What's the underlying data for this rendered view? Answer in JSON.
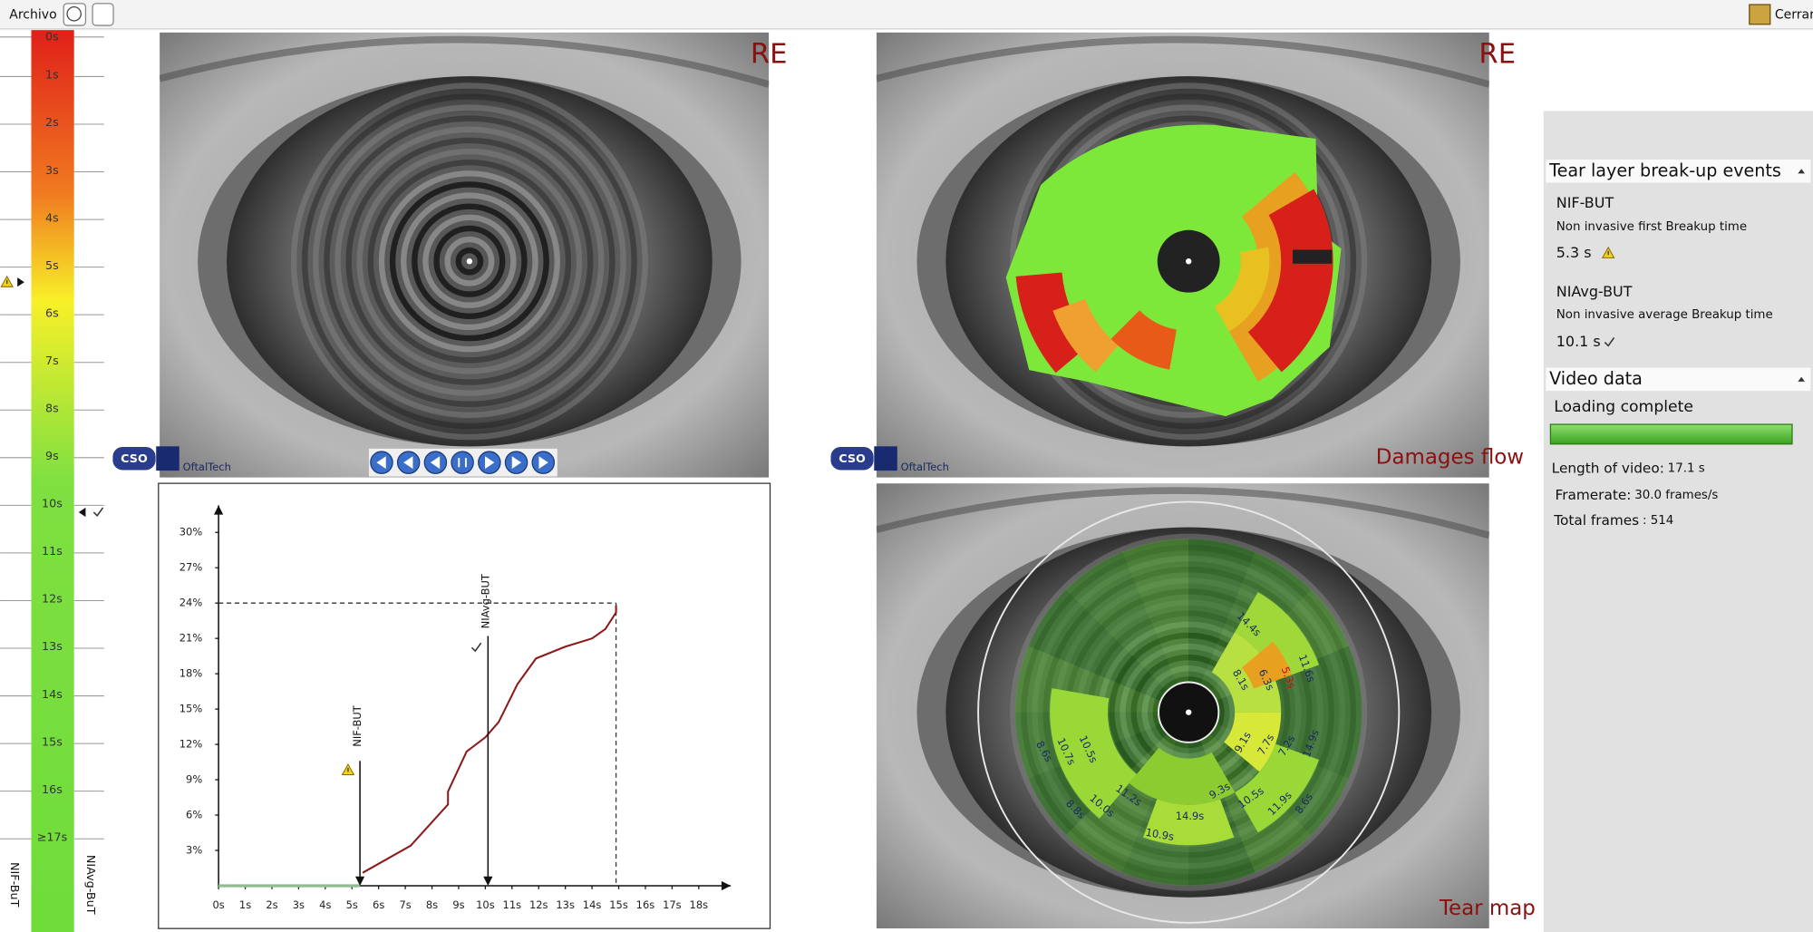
{
  "menu": {
    "file": "Archivo",
    "close": "Cerrar"
  },
  "scale": {
    "labels": [
      "0s",
      "1s",
      "2s",
      "3s",
      "4s",
      "5s",
      "6s",
      "7s",
      "8s",
      "9s",
      "10s",
      "11s",
      "12s",
      "13s",
      "14s",
      "15s",
      "16s",
      "≥17s"
    ],
    "left_label": "NIF-BuT",
    "right_label": "NIAvg-BuT"
  },
  "panels": {
    "topo_label": "RE",
    "damage_label": "RE",
    "damages_flow": "Damages flow",
    "tear_map": "Tear map",
    "brand": "OftalTech",
    "logo": "CSO"
  },
  "tear_map_values": [
    "14.4s",
    "11.6s",
    "8.1s",
    "6.3s",
    "5.3s",
    "9.1s",
    "7.7s",
    "7.2s",
    "14.9s",
    "8.6s",
    "10.7s",
    "10.5s",
    "11.2s",
    "10.0s",
    "8.8s",
    "10.9s",
    "14.9s",
    "9.3s",
    "10.5s",
    "11.9s",
    "8.6s"
  ],
  "chart_data": {
    "type": "line",
    "xlim": [
      0,
      19.2
    ],
    "ylim": [
      0,
      32.3
    ],
    "xticks": [
      {
        "value": 0,
        "label": "0s"
      },
      {
        "value": 1,
        "label": "1s"
      },
      {
        "value": 2,
        "label": "2s"
      },
      {
        "value": 3,
        "label": "3s"
      },
      {
        "value": 4,
        "label": "4s"
      },
      {
        "value": 5,
        "label": "5s"
      },
      {
        "value": 6,
        "label": "6s"
      },
      {
        "value": 7,
        "label": "7s"
      },
      {
        "value": 8,
        "label": "8s"
      },
      {
        "value": 9,
        "label": "9s"
      },
      {
        "value": 10,
        "label": "10s"
      },
      {
        "value": 11,
        "label": "11s"
      },
      {
        "value": 12,
        "label": "12s"
      },
      {
        "value": 13,
        "label": "13s"
      },
      {
        "value": 14,
        "label": "14s"
      },
      {
        "value": 15,
        "label": "15s"
      },
      {
        "value": 16,
        "label": "16s"
      },
      {
        "value": 17,
        "label": "17s"
      },
      {
        "value": 18,
        "label": "18s"
      }
    ],
    "yticks": [
      {
        "value": 3,
        "label": "3%"
      },
      {
        "value": 6,
        "label": "6%"
      },
      {
        "value": 9,
        "label": "9%"
      },
      {
        "value": 12,
        "label": "12%"
      },
      {
        "value": 15,
        "label": "15%"
      },
      {
        "value": 18,
        "label": "18%"
      },
      {
        "value": 21,
        "label": "21%"
      },
      {
        "value": 24,
        "label": "24%"
      },
      {
        "value": 27,
        "label": "27%"
      },
      {
        "value": 30,
        "label": "30%"
      }
    ],
    "series": [
      {
        "color": "#8fbc8f",
        "x": [
          0,
          5.3
        ],
        "values": [
          0,
          0
        ]
      },
      {
        "color": "#8b1a1a",
        "x": [
          5.4,
          7.2,
          8.6,
          8.6,
          9.3,
          10.0,
          10.5,
          11.2,
          11.9,
          13.0,
          14.0,
          14.5,
          14.9,
          14.9
        ],
        "values": [
          1.1,
          3.4,
          6.9,
          8.0,
          11.4,
          12.6,
          13.9,
          17.1,
          19.3,
          20.3,
          21.0,
          21.8,
          23.2,
          23.8
        ]
      }
    ],
    "annotations": [
      {
        "text": "NIF-BUT",
        "x": 5.3
      },
      {
        "text": "NIAvg-BUT",
        "x": 10.1
      }
    ],
    "reference": {
      "x": 14.9,
      "y": 24
    }
  },
  "sidebar": {
    "events_header": "Tear layer break-up events",
    "nif_title": "NIF-BUT",
    "nif_desc": "Non invasive first Breakup time",
    "nif_value": "5.3 s",
    "niavg_title": "NIAvg-BUT",
    "niavg_desc": "Non invasive average Breakup time",
    "niavg_value": "10.1 s",
    "video_header": "Video data",
    "loading": "Loading complete",
    "length_label": "Length of video:",
    "length_value": "17.1 s",
    "framerate_label": "Framerate:",
    "framerate_value": "30.0 frames/s",
    "frames_label": "Total frames",
    "frames_value": ": 514"
  }
}
